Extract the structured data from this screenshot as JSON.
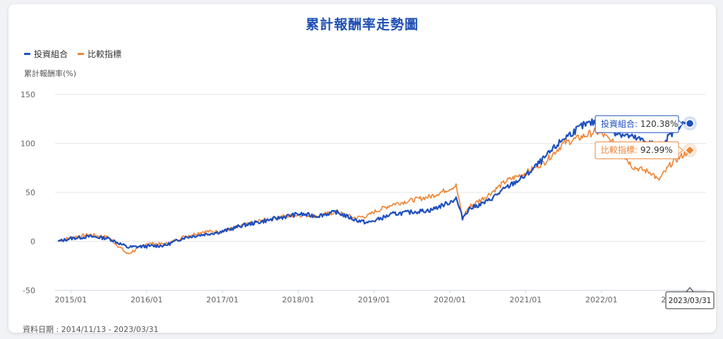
{
  "chart_data": {
    "type": "line",
    "title": "累計報酬率走勢圖",
    "ylabel": "累計報酬率(%)",
    "ylim": [
      -50,
      150
    ],
    "yticks": [
      150,
      100,
      50,
      0,
      -50
    ],
    "xticks": [
      "2015/01",
      "2016/01",
      "2017/01",
      "2018/01",
      "2019/01",
      "2020/01",
      "2021/01",
      "2022/01",
      "2023/01"
    ],
    "x_range": [
      "2014/11",
      "2023/03"
    ],
    "grid": true,
    "legend_position": "top-left",
    "series": [
      {
        "name": "投資組合",
        "color": "#1d4fbf",
        "x": [
          "2014/11",
          "2015/01",
          "2015/04",
          "2015/07",
          "2015/10",
          "2016/01",
          "2016/04",
          "2016/07",
          "2016/10",
          "2017/01",
          "2017/04",
          "2017/07",
          "2017/10",
          "2018/01",
          "2018/04",
          "2018/07",
          "2018/10",
          "2018/12",
          "2019/01",
          "2019/04",
          "2019/07",
          "2019/10",
          "2020/01",
          "2020/02",
          "2020/03",
          "2020/04",
          "2020/07",
          "2020/10",
          "2021/01",
          "2021/04",
          "2021/07",
          "2021/10",
          "2021/12",
          "2022/01",
          "2022/03",
          "2022/06",
          "2022/09",
          "2022/10",
          "2022/12",
          "2023/01",
          "2023/03"
        ],
        "values": [
          0,
          3,
          5,
          3,
          -6,
          -5,
          -4,
          4,
          7,
          10,
          16,
          20,
          24,
          28,
          26,
          30,
          22,
          19,
          21,
          28,
          30,
          32,
          40,
          44,
          24,
          33,
          41,
          55,
          67,
          85,
          105,
          118,
          122,
          124,
          112,
          106,
          100,
          96,
          109,
          118,
          120.38
        ]
      },
      {
        "name": "比較指標",
        "color": "#ee8433",
        "x": [
          "2014/11",
          "2015/01",
          "2015/04",
          "2015/07",
          "2015/10",
          "2016/01",
          "2016/04",
          "2016/07",
          "2016/10",
          "2017/01",
          "2017/04",
          "2017/07",
          "2017/10",
          "2018/01",
          "2018/04",
          "2018/07",
          "2018/10",
          "2018/12",
          "2019/01",
          "2019/04",
          "2019/07",
          "2019/10",
          "2020/01",
          "2020/02",
          "2020/03",
          "2020/04",
          "2020/07",
          "2020/10",
          "2021/01",
          "2021/04",
          "2021/07",
          "2021/10",
          "2021/12",
          "2022/01",
          "2022/03",
          "2022/06",
          "2022/09",
          "2022/10",
          "2022/12",
          "2023/01",
          "2023/03"
        ],
        "values": [
          0,
          4,
          7,
          4,
          -13,
          -2,
          -3,
          5,
          10,
          10,
          16,
          21,
          25,
          27,
          26,
          30,
          24,
          26,
          30,
          38,
          42,
          46,
          54,
          57,
          24,
          35,
          47,
          62,
          70,
          81,
          100,
          107,
          112,
          110,
          100,
          76,
          70,
          62,
          79,
          84,
          92.99
        ]
      }
    ],
    "tooltip": {
      "date": "2023/03/31",
      "items": [
        {
          "name": "投資組合",
          "value": "120.38%"
        },
        {
          "name": "比較指標",
          "value": "92.99%"
        }
      ]
    }
  },
  "footer": {
    "label": "資料日期 : 2014/11/13 - 2023/03/31"
  }
}
